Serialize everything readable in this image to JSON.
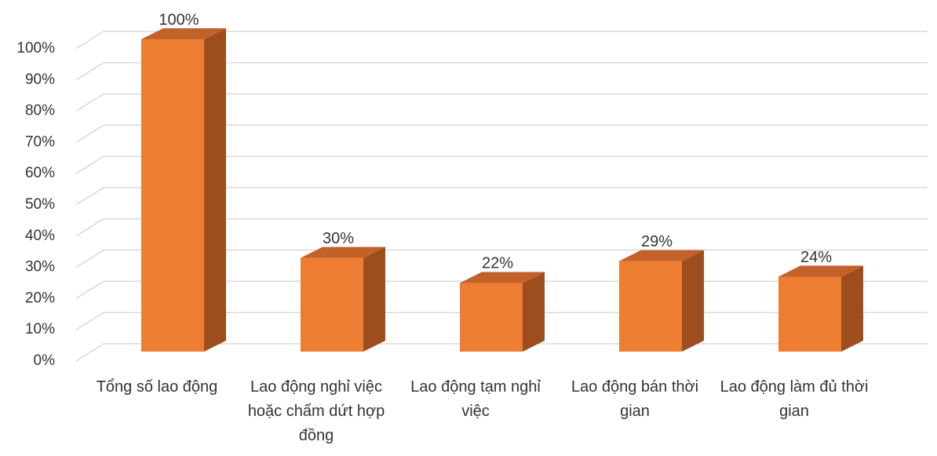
{
  "chart_data": {
    "type": "bar3d",
    "categories": [
      "Tổng số lao động",
      "Lao động nghỉ việc hoặc chấm dứt hợp đồng",
      "Lao động tạm nghỉ việc",
      "Lao động bán thời gian",
      "Lao động làm đủ thời gian"
    ],
    "values": [
      100,
      30,
      22,
      29,
      24
    ],
    "value_labels": [
      "100%",
      "30%",
      "22%",
      "29%",
      "24%"
    ],
    "color": "#ed7d31",
    "ylim": [
      0,
      100
    ],
    "yticks": [
      {
        "value": 0,
        "label": "0%"
      },
      {
        "value": 10,
        "label": "10%"
      },
      {
        "value": 20,
        "label": "20%"
      },
      {
        "value": 30,
        "label": "30%"
      },
      {
        "value": 40,
        "label": "40%"
      },
      {
        "value": 50,
        "label": "50%"
      },
      {
        "value": 60,
        "label": "60%"
      },
      {
        "value": 70,
        "label": "70%"
      },
      {
        "value": 80,
        "label": "80%"
      },
      {
        "value": 90,
        "label": "90%"
      },
      {
        "value": 100,
        "label": "100%"
      }
    ],
    "grid": true
  }
}
